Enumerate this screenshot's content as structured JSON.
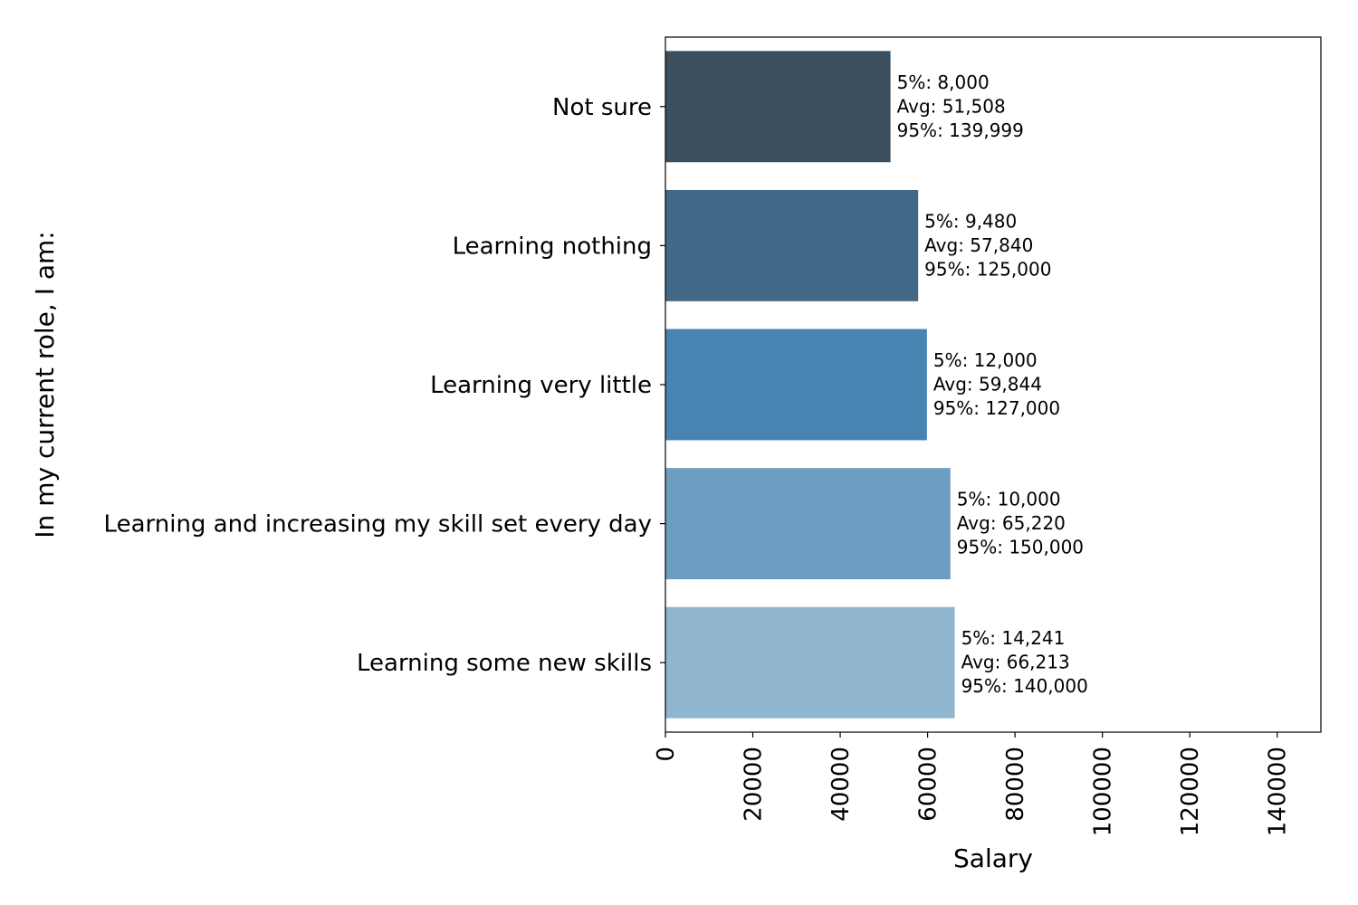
{
  "chart_data": {
    "type": "bar",
    "orientation": "horizontal",
    "categories": [
      "Not sure",
      "Learning nothing",
      "Learning very little",
      "Learning and increasing my skill set every day",
      "Learning some new skills"
    ],
    "values": [
      51508,
      57840,
      59844,
      65220,
      66213
    ],
    "annotations": [
      [
        "5%: 8,000",
        "Avg: 51,508",
        "95%: 139,999"
      ],
      [
        "5%: 9,480",
        "Avg: 57,840",
        "95%: 125,000"
      ],
      [
        "5%: 12,000",
        "Avg: 59,844",
        "95%: 127,000"
      ],
      [
        "5%: 10,000",
        "Avg: 65,220",
        "95%: 150,000"
      ],
      [
        "5%: 14,241",
        "Avg: 66,213",
        "95%: 140,000"
      ]
    ],
    "colors": [
      "#3c4f5e",
      "#426987",
      "#4884b2",
      "#6d9ec1",
      "#90b5ce"
    ],
    "xlabel": "Salary",
    "ylabel": "In my current role, I am:",
    "xlim": [
      0,
      150000
    ],
    "xticks": [
      0,
      20000,
      40000,
      60000,
      80000,
      100000,
      120000,
      140000
    ],
    "xtick_labels": [
      "0",
      "20000",
      "40000",
      "60000",
      "80000",
      "100000",
      "120000",
      "140000"
    ],
    "grid": false,
    "legend": "none"
  }
}
